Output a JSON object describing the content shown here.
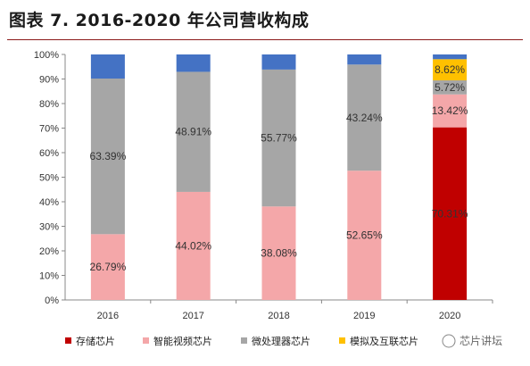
{
  "chart_data": {
    "type": "bar",
    "stacked": true,
    "title": "图表 7. 2016-2020 年公司营收构成",
    "categories": [
      "2016",
      "2017",
      "2018",
      "2019",
      "2020"
    ],
    "series": [
      {
        "name": "存储芯片",
        "color": "#c00000",
        "values": [
          0,
          0,
          0,
          0,
          70.31
        ],
        "labels": [
          "",
          "",
          "",
          "",
          "70.31%"
        ]
      },
      {
        "name": "智能视频芯片",
        "color": "#f4a7a9",
        "values": [
          26.79,
          44.02,
          38.08,
          52.65,
          13.42
        ],
        "labels": [
          "26.79%",
          "44.02%",
          "38.08%",
          "52.65%",
          "13.42%"
        ]
      },
      {
        "name": "微处理器芯片",
        "color": "#a6a6a6",
        "values": [
          63.39,
          48.91,
          55.77,
          43.24,
          5.72
        ],
        "labels": [
          "63.39%",
          "48.91%",
          "55.77%",
          "43.24%",
          "5.72%"
        ]
      },
      {
        "name": "模拟及互联芯片",
        "color": "#ffc000",
        "values": [
          0,
          0,
          0,
          0,
          8.62
        ],
        "labels": [
          "",
          "",
          "",
          "",
          "8.62%"
        ]
      },
      {
        "name": "",
        "color": "#4472c4",
        "values": [
          9.82,
          7.07,
          6.15,
          4.11,
          1.93
        ],
        "labels": [
          "",
          "",
          "",
          "",
          ""
        ]
      }
    ],
    "y_ticks": [
      "0%",
      "10%",
      "20%",
      "30%",
      "40%",
      "50%",
      "60%",
      "70%",
      "80%",
      "90%",
      "100%"
    ],
    "ylim": [
      0,
      100
    ],
    "legend_position": "bottom",
    "grid": false
  },
  "watermark": "芯片讲坛"
}
